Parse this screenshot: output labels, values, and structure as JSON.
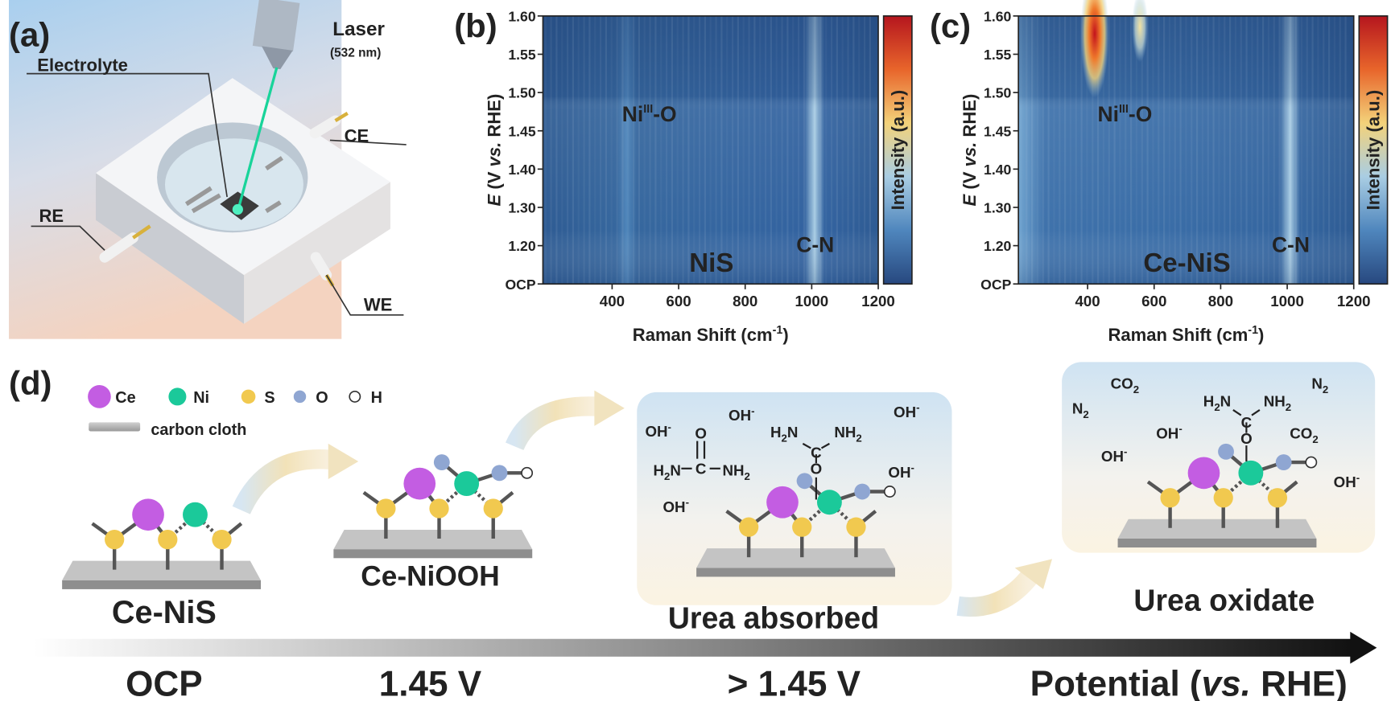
{
  "panels": {
    "a": {
      "label": "(a)",
      "laser": "Laser",
      "wavelength": "(532 nm)",
      "electrolyte": "Electrolyte",
      "ce": "CE",
      "re": "RE",
      "we": "WE"
    },
    "b": {
      "label": "(b)",
      "sample": "NiS",
      "peak1": [
        "Ni",
        "III",
        "-O"
      ],
      "peak2": "C-N",
      "x_label": [
        "Raman Shift (cm",
        "-1",
        ")"
      ],
      "y_label": [
        "E",
        " (V ",
        "vs.",
        " RHE)"
      ],
      "colorbar_label": "Intensity (a.u.)",
      "xticks": [
        "400",
        "600",
        "800",
        "1000",
        "1200"
      ],
      "yticks": [
        "1.60",
        "1.55",
        "1.50",
        "1.45",
        "1.40",
        "1.30",
        "1.20",
        "OCP"
      ]
    },
    "c": {
      "label": "(c)",
      "sample": "Ce-NiS",
      "peak1": [
        "Ni",
        "III",
        "-O"
      ],
      "peak2": "C-N",
      "x_label": [
        "Raman Shift (cm",
        "-1",
        ")"
      ],
      "y_label": [
        "E",
        " (V ",
        "vs.",
        " RHE)"
      ],
      "colorbar_label": "Intensity (a.u.)",
      "xticks": [
        "400",
        "600",
        "800",
        "1000",
        "1200"
      ],
      "yticks": [
        "1.60",
        "1.55",
        "1.50",
        "1.45",
        "1.40",
        "1.30",
        "1.20",
        "OCP"
      ]
    },
    "d": {
      "label": "(d)",
      "legend": [
        "Ce",
        "Ni",
        "S",
        "O",
        "H",
        "carbon cloth"
      ],
      "stages": [
        "Ce-NiS",
        "Ce-NiOOH",
        "Urea absorbed",
        "Urea oxidate"
      ],
      "potentials": [
        "OCP",
        "1.45 V",
        "> 1.45 V"
      ],
      "axis_label": [
        "Potential (",
        "vs.",
        " RHE)"
      ],
      "species": [
        {
          "base": "OH",
          "sup": "-"
        },
        {
          "base": "OH",
          "sup": "-"
        },
        {
          "base": "OH",
          "sup": "-"
        },
        {
          "base": "OH",
          "sup": "-"
        },
        {
          "base": "OH",
          "sup": "-"
        },
        {
          "base": "O"
        },
        {
          "base": "C"
        },
        {
          "base": "H",
          "sub": "2",
          "tail": "N"
        },
        {
          "base": "NH",
          "sub": "2"
        },
        {
          "base": "H",
          "sub": "2",
          "tail": "N"
        },
        {
          "base": "C"
        },
        {
          "base": "NH",
          "sub": "2"
        },
        {
          "base": "O"
        },
        {
          "base": "N",
          "sub": "2"
        },
        {
          "base": "CO",
          "sub": "2"
        },
        {
          "base": "N",
          "sub": "2"
        },
        {
          "base": "OH",
          "sup": "-"
        },
        {
          "base": "OH",
          "sup": "-"
        },
        {
          "base": "CO",
          "sub": "2"
        },
        {
          "base": "OH",
          "sup": "-"
        },
        {
          "base": "H",
          "sub": "2",
          "tail": "N"
        },
        {
          "base": "C"
        },
        {
          "base": "NH",
          "sub": "2"
        },
        {
          "base": "O"
        }
      ]
    }
  }
}
